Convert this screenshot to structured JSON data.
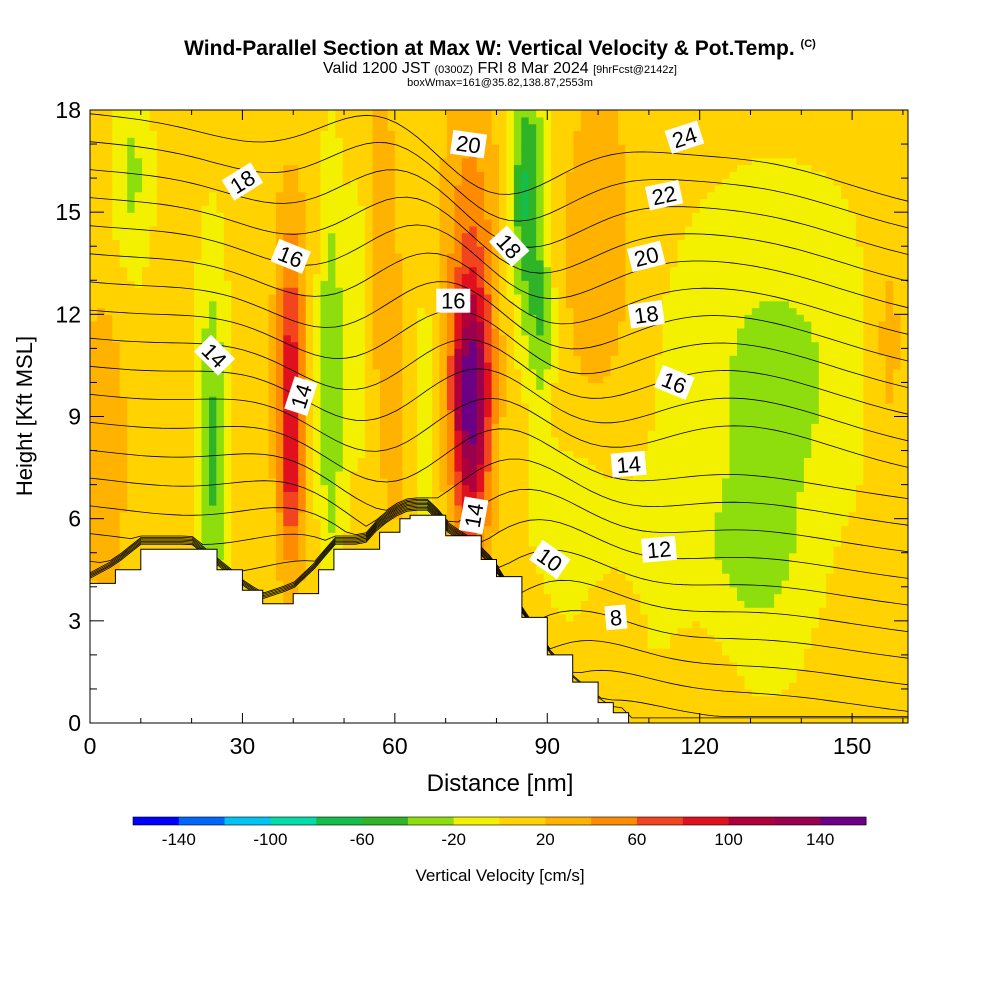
{
  "header": {
    "title": "Wind-Parallel Section at Max W: Vertical Velocity & Pot.Temp.",
    "copyright": "(C)",
    "subtitle_valid": "Valid 1200 JST",
    "subtitle_utc": "(0300Z)",
    "subtitle_date": "FRI 8 Mar 2024",
    "subtitle_fcst": "[9hrFcst@2142z]",
    "subtitle_box": "boxWmax=161@35.82,138.87,2553m"
  },
  "chart_data": {
    "type": "heatmap",
    "xlabel": "Distance [nm]",
    "ylabel": "Height [Kft MSL]",
    "xlim": [
      0,
      161
    ],
    "ylim": [
      0,
      18
    ],
    "xticks": [
      0,
      30,
      60,
      90,
      120,
      150
    ],
    "yticks": [
      0,
      3,
      6,
      9,
      12,
      15,
      18
    ],
    "grid": false,
    "fill_variable": "Vertical Velocity [cm/s]",
    "colorbar": {
      "label": "Vertical Velocity [cm/s]",
      "bin_edges": [
        -160,
        -140,
        -120,
        -100,
        -80,
        -60,
        -40,
        -20,
        0,
        20,
        40,
        60,
        80,
        100,
        120,
        140,
        160
      ],
      "tick_labels": [
        "-140",
        "-100",
        "-60",
        "-20",
        "20",
        "60",
        "100",
        "140"
      ],
      "tick_values": [
        -140,
        -100,
        -60,
        -20,
        20,
        60,
        100,
        140
      ],
      "colors": [
        "#0000ff",
        "#0066ff",
        "#00c4f4",
        "#00dcaa",
        "#15be4b",
        "#2fb428",
        "#8ede0e",
        "#f3f100",
        "#ffd200",
        "#ffb300",
        "#ff8b00",
        "#f2451e",
        "#e1101e",
        "#b0003c",
        "#99004e",
        "#6b0085"
      ]
    },
    "contour_variable": "Potential Temperature",
    "contour_labels": [
      {
        "text": "24",
        "x": 117,
        "y": 17.2
      },
      {
        "text": "22",
        "x": 113,
        "y": 15.5
      },
      {
        "text": "20",
        "x": 74.5,
        "y": 17.0
      },
      {
        "text": "20",
        "x": 109.5,
        "y": 13.7
      },
      {
        "text": "18",
        "x": 30,
        "y": 15.9
      },
      {
        "text": "18",
        "x": 82.5,
        "y": 14.0
      },
      {
        "text": "18",
        "x": 109.5,
        "y": 12.0
      },
      {
        "text": "16",
        "x": 39.5,
        "y": 13.7
      },
      {
        "text": "16",
        "x": 71.5,
        "y": 12.4
      },
      {
        "text": "16",
        "x": 115,
        "y": 10.0
      },
      {
        "text": "14",
        "x": 24.5,
        "y": 10.8
      },
      {
        "text": "14",
        "x": 41.5,
        "y": 9.6
      },
      {
        "text": "14",
        "x": 75.5,
        "y": 6.1
      },
      {
        "text": "14",
        "x": 106,
        "y": 7.6
      },
      {
        "text": "12",
        "x": 112,
        "y": 5.1
      },
      {
        "text": "10",
        "x": 90.5,
        "y": 4.8
      },
      {
        "text": "8",
        "x": 103.5,
        "y": 3.1
      }
    ],
    "vertical_velocity_features": [
      {
        "kind": "updraft",
        "x": 40,
        "y": 8.5,
        "max_cm_s": 100
      },
      {
        "kind": "updraft",
        "x": 75,
        "y": 9.5,
        "max_cm_s": 140
      },
      {
        "kind": "downdraft",
        "x": 24,
        "y": 8.0,
        "min_cm_s": -40
      },
      {
        "kind": "downdraft",
        "x": 48,
        "y": 10.0,
        "min_cm_s": -40
      },
      {
        "kind": "downdraft",
        "x": 86,
        "y": 15.0,
        "min_cm_s": -60
      }
    ],
    "terrain_height_kft": [
      [
        0,
        4.1
      ],
      [
        5,
        4.5
      ],
      [
        10,
        5.1
      ],
      [
        20,
        5.1
      ],
      [
        25,
        4.5
      ],
      [
        30,
        3.9
      ],
      [
        34,
        3.5
      ],
      [
        40,
        3.8
      ],
      [
        45,
        4.5
      ],
      [
        48,
        5.1
      ],
      [
        54,
        5.1
      ],
      [
        57,
        5.6
      ],
      [
        61,
        6.0
      ],
      [
        63,
        6.1
      ],
      [
        67,
        6.1
      ],
      [
        70,
        5.5
      ],
      [
        77,
        4.8
      ],
      [
        80,
        4.3
      ],
      [
        85,
        3.1
      ],
      [
        90,
        2.0
      ],
      [
        95,
        1.2
      ],
      [
        100,
        0.6
      ],
      [
        103,
        0.3
      ],
      [
        105,
        0.3
      ],
      [
        106,
        0
      ]
    ]
  }
}
